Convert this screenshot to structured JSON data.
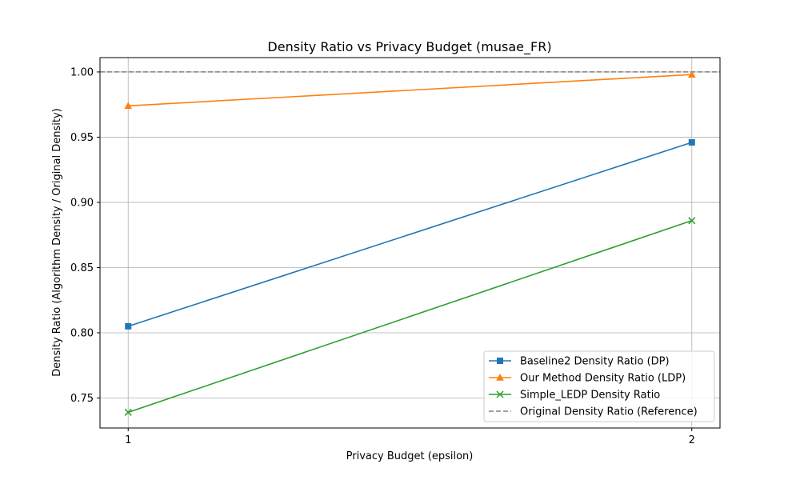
{
  "chart_data": {
    "type": "line",
    "title": "Density Ratio vs Privacy Budget (musae_FR)",
    "xlabel": "Privacy Budget (epsilon)",
    "ylabel": "Density Ratio (Algorithm Density / Original Density)",
    "x": [
      1,
      2
    ],
    "x_ticks": [
      "1",
      "2"
    ],
    "xlim": [
      0.95,
      2.05
    ],
    "ylim": [
      0.727,
      1.011
    ],
    "y_ticks": [
      "0.75",
      "0.80",
      "0.85",
      "0.90",
      "0.95",
      "1.00"
    ],
    "grid": true,
    "legend_position": "lower-right",
    "series": [
      {
        "name": "Baseline2 Density Ratio (DP)",
        "values": [
          0.805,
          0.946
        ],
        "color": "#1f77b4",
        "marker": "square",
        "line": "solid"
      },
      {
        "name": "Our Method Density Ratio (LDP)",
        "values": [
          0.974,
          0.998
        ],
        "color": "#ff7f0e",
        "marker": "triangle",
        "line": "solid"
      },
      {
        "name": "Simple_LEDP Density Ratio",
        "values": [
          0.739,
          0.886
        ],
        "color": "#2ca02c",
        "marker": "x",
        "line": "solid"
      }
    ],
    "reference_line": {
      "name": "Original Density Ratio (Reference)",
      "value": 1.0,
      "color": "#808080",
      "line": "dashed"
    }
  }
}
